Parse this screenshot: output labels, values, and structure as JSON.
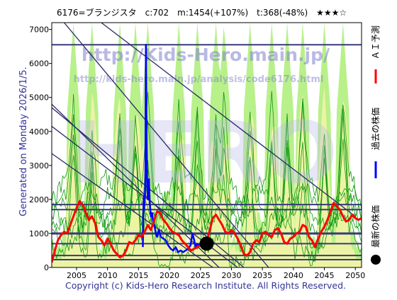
{
  "header": {
    "title": "6176=ブランジスタ　c:702　m:1454(+107%)　t:368(-48%)　★★★☆"
  },
  "watermark": {
    "line1": "http://Kids-Hero.main.jp/",
    "line2": "http://kids-hero.main.jp/analysis/code6176.html",
    "big": "HERO"
  },
  "side_label": "Generated on Monday 2026/1/5.",
  "footer": "Copyright (c) Kids-Hero Research Institute. All Rights Reserved.",
  "legend": [
    {
      "label": "ＡＩ予測",
      "color": "#ff0000",
      "marker": "line"
    },
    {
      "label": "過去の株価",
      "color": "#0000ff",
      "marker": "line"
    },
    {
      "label": "最新の株価",
      "color": "#000000",
      "marker": "dot"
    }
  ],
  "chart_data": {
    "type": "line",
    "title": "6176=ブランジスタ　c:702　m:1454(+107%)　t:368(-48%)　★★★☆",
    "xlim": [
      2001,
      2051
    ],
    "ylim": [
      0,
      7200
    ],
    "x_ticks": [
      2005,
      2010,
      2015,
      2020,
      2025,
      2030,
      2035,
      2040,
      2045,
      2050
    ],
    "y_ticks": [
      0,
      1000,
      2000,
      3000,
      4000,
      5000,
      6000,
      7000
    ],
    "horizontal_lines": [
      230,
      350,
      700,
      1000,
      1700,
      1850,
      6550
    ],
    "trend_lines": [
      {
        "x": [
          2003,
          2036
        ],
        "y": [
          7200,
          0
        ]
      },
      {
        "x": [
          2001,
          2028
        ],
        "y": [
          4800,
          0
        ]
      },
      {
        "x": [
          2001,
          2031
        ],
        "y": [
          4150,
          0
        ]
      },
      {
        "x": [
          2001,
          2027
        ],
        "y": [
          3350,
          0
        ]
      },
      {
        "x": [
          2001,
          2032
        ],
        "y": [
          4700,
          0
        ]
      },
      {
        "x": [
          2009,
          2050
        ],
        "y": [
          7200,
          1500
        ]
      }
    ],
    "latest_price": {
      "x": 2026.0,
      "y": 702,
      "label": "最新の株価"
    },
    "series": [
      {
        "name": "過去の株価",
        "color": "#0000ff",
        "x": [
          2015.7,
          2015.75,
          2015.8,
          2015.85,
          2015.9,
          2016.0,
          2016.1,
          2016.2,
          2016.3,
          2016.4,
          2016.5,
          2016.6,
          2016.7,
          2016.8,
          2016.9,
          2017.0,
          2017.2,
          2017.4,
          2017.6,
          2017.8,
          2018.0,
          2018.3,
          2018.6,
          2019.0,
          2019.4,
          2019.8,
          2020.2,
          2020.6,
          2021.0,
          2021.4,
          2021.8,
          2022.2,
          2022.6,
          2023.0,
          2023.4,
          2023.7,
          2024.0,
          2024.2,
          2024.4,
          2024.7,
          2025.0,
          2025.4,
          2025.8
        ],
        "y": [
          600,
          1200,
          1800,
          2100,
          1700,
          2000,
          2400,
          6550,
          4000,
          2600,
          2000,
          2300,
          2600,
          1900,
          1700,
          1500,
          1600,
          1300,
          1200,
          1000,
          900,
          1100,
          900,
          850,
          800,
          650,
          550,
          500,
          600,
          450,
          500,
          450,
          500,
          550,
          650,
          1000,
          800,
          600,
          700,
          650,
          700,
          650,
          702
        ]
      },
      {
        "name": "ＡＩ予測",
        "color": "#ff0000",
        "x": [
          2001,
          2001.5,
          2002,
          2002.5,
          2003,
          2003.5,
          2004,
          2004.5,
          2005,
          2005.5,
          2006,
          2006.5,
          2007,
          2007.5,
          2008,
          2008.5,
          2009,
          2009.5,
          2010,
          2010.5,
          2011,
          2011.5,
          2012,
          2012.5,
          2013,
          2013.5,
          2014,
          2014.5,
          2015,
          2015.5,
          2016,
          2016.5,
          2017,
          2017.5,
          2018,
          2018.5,
          2019,
          2019.5,
          2020,
          2020.5,
          2021,
          2021.5,
          2022,
          2022.5,
          2023,
          2023.5,
          2024,
          2024.5,
          2025,
          2025.5,
          2026,
          2026.5,
          2027,
          2027.5,
          2028,
          2028.5,
          2029,
          2029.5,
          2030,
          2030.5,
          2031,
          2031.5,
          2032,
          2032.5,
          2033,
          2033.5,
          2034,
          2034.5,
          2035,
          2035.5,
          2036,
          2036.5,
          2037,
          2037.5,
          2038,
          2038.5,
          2039,
          2039.5,
          2040,
          2040.5,
          2041,
          2041.5,
          2042,
          2042.5,
          2043,
          2043.5,
          2044,
          2044.5,
          2045,
          2045.5,
          2046,
          2046.5,
          2047,
          2047.5,
          2048,
          2048.5,
          2049,
          2049.5,
          2050,
          2050.5,
          2051
        ],
        "y": [
          150,
          500,
          800,
          950,
          1050,
          1000,
          1250,
          1500,
          1750,
          1950,
          1850,
          1600,
          1400,
          1500,
          1300,
          900,
          800,
          650,
          850,
          700,
          500,
          400,
          300,
          350,
          500,
          750,
          700,
          800,
          950,
          900,
          1050,
          1250,
          1100,
          1350,
          1650,
          1600,
          1400,
          1300,
          1150,
          1050,
          1000,
          950,
          800,
          700,
          600,
          500,
          550,
          600,
          650,
          700,
          750,
          1100,
          1450,
          1550,
          1400,
          1250,
          1050,
          1000,
          1100,
          1000,
          850,
          650,
          400,
          350,
          450,
          700,
          800,
          750,
          1000,
          1050,
          950,
          900,
          1100,
          1150,
          1000,
          750,
          700,
          850,
          900,
          1000,
          1050,
          1250,
          1200,
          900,
          800,
          600,
          850,
          1050,
          1200,
          1400,
          1650,
          1900,
          1800,
          1700,
          1500,
          1350,
          1400,
          1550,
          1450,
          1400,
          1450
        ]
      }
    ]
  }
}
